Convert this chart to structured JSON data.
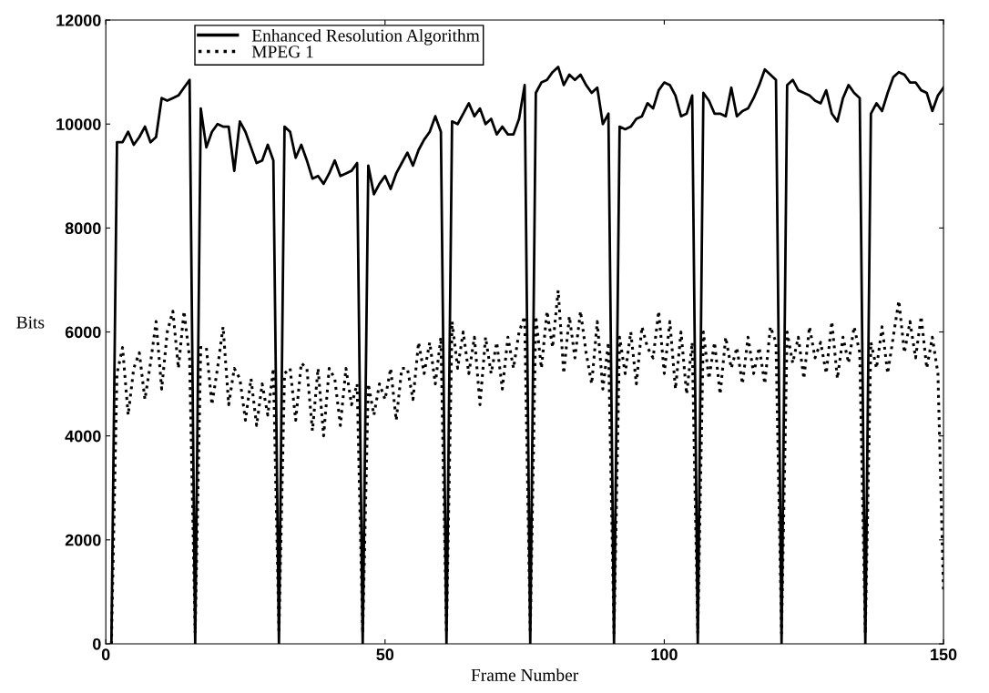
{
  "chart_data": {
    "type": "line",
    "xlabel": "Frame Number",
    "ylabel": "Bits",
    "xlim": [
      0,
      150
    ],
    "ylim": [
      0,
      12000
    ],
    "xticks": [
      0,
      50,
      100,
      150
    ],
    "yticks": [
      0,
      2000,
      4000,
      6000,
      8000,
      10000,
      12000
    ],
    "grid": false,
    "legend": "top left",
    "marker": "none",
    "x": [
      1,
      2,
      3,
      4,
      5,
      6,
      7,
      8,
      9,
      10,
      11,
      12,
      13,
      14,
      15,
      16,
      17,
      18,
      19,
      20,
      21,
      22,
      23,
      24,
      25,
      26,
      27,
      28,
      29,
      30,
      31,
      32,
      33,
      34,
      35,
      36,
      37,
      38,
      39,
      40,
      41,
      42,
      43,
      44,
      45,
      46,
      47,
      48,
      49,
      50,
      51,
      52,
      53,
      54,
      55,
      56,
      57,
      58,
      59,
      60,
      61,
      62,
      63,
      64,
      65,
      66,
      67,
      68,
      69,
      70,
      71,
      72,
      73,
      74,
      75,
      76,
      77,
      78,
      79,
      80,
      81,
      82,
      83,
      84,
      85,
      86,
      87,
      88,
      89,
      90,
      91,
      92,
      93,
      94,
      95,
      96,
      97,
      98,
      99,
      100,
      101,
      102,
      103,
      104,
      105,
      106,
      107,
      108,
      109,
      110,
      111,
      112,
      113,
      114,
      115,
      116,
      117,
      118,
      119,
      120,
      121,
      122,
      123,
      124,
      125,
      126,
      127,
      128,
      129,
      130,
      131,
      132,
      133,
      134,
      135,
      136,
      137,
      138,
      139,
      140,
      141,
      142,
      143,
      144,
      145,
      146,
      147,
      148,
      149,
      150
    ],
    "series": [
      {
        "name": "Enhanced Resolution Algorithm",
        "color": "#000000",
        "line_style": "solid",
        "values": [
          0,
          9650,
          9650,
          9850,
          9600,
          9750,
          9950,
          9650,
          9750,
          10500,
          10450,
          10500,
          10550,
          10700,
          10850,
          0,
          10300,
          9550,
          9850,
          10000,
          9950,
          9950,
          9100,
          10050,
          9850,
          9550,
          9250,
          9300,
          9600,
          9300,
          0,
          9950,
          9850,
          9350,
          9600,
          9300,
          8950,
          9000,
          8850,
          9050,
          9300,
          9000,
          9050,
          9100,
          9250,
          0,
          9200,
          8650,
          8850,
          9000,
          8750,
          9050,
          9250,
          9450,
          9200,
          9500,
          9700,
          9850,
          10150,
          9850,
          0,
          10050,
          10000,
          10200,
          10400,
          10150,
          10300,
          10000,
          10100,
          9800,
          9950,
          9800,
          9800,
          10100,
          10750,
          0,
          10600,
          10800,
          10850,
          11000,
          11100,
          10750,
          10950,
          10850,
          10950,
          10750,
          10600,
          10700,
          10000,
          10200,
          0,
          9950,
          9900,
          9950,
          10100,
          10150,
          10400,
          10300,
          10650,
          10800,
          10750,
          10550,
          10150,
          10200,
          10550,
          0,
          10600,
          10450,
          10200,
          10200,
          10150,
          10700,
          10150,
          10250,
          10300,
          10500,
          10750,
          11050,
          10950,
          10850,
          0,
          10750,
          10850,
          10650,
          10600,
          10550,
          10450,
          10400,
          10650,
          10200,
          10050,
          10500,
          10750,
          10600,
          10500,
          0,
          10200,
          10400,
          10250,
          10600,
          10900,
          11000,
          10950,
          10800,
          10800,
          10650,
          10600,
          10250,
          10550,
          10700
        ]
      },
      {
        "name": "MPEG 1",
        "color": "#000000",
        "line_style": "dotted",
        "values": [
          0,
          5200,
          5700,
          4400,
          5300,
          5600,
          4700,
          5400,
          6200,
          4900,
          6000,
          6400,
          5300,
          6400,
          5500,
          200,
          5700,
          5700,
          4600,
          5300,
          6100,
          4600,
          5300,
          5100,
          4300,
          5100,
          4200,
          5000,
          4400,
          5300,
          200,
          5200,
          5300,
          4300,
          5400,
          5300,
          4100,
          5300,
          4000,
          5300,
          5100,
          4200,
          5300,
          4600,
          5000,
          200,
          5000,
          4400,
          5000,
          4700,
          5300,
          4300,
          5300,
          5300,
          4700,
          5800,
          5200,
          5800,
          5000,
          5900,
          200,
          6200,
          5300,
          6000,
          5200,
          5900,
          4600,
          5900,
          5200,
          5800,
          4900,
          5900,
          5300,
          6000,
          6300,
          200,
          6300,
          5300,
          6400,
          5700,
          6800,
          5200,
          6300,
          5500,
          6400,
          5600,
          5000,
          6200,
          4900,
          5800,
          200,
          5900,
          5200,
          6000,
          5000,
          6100,
          5700,
          5500,
          6400,
          5200,
          6200,
          4900,
          6000,
          4800,
          5800,
          200,
          6000,
          5100,
          5800,
          4800,
          5900,
          5300,
          5700,
          5000,
          5900,
          5200,
          5700,
          5000,
          6100,
          5800,
          200,
          6000,
          5400,
          5900,
          5100,
          6100,
          5500,
          5800,
          5200,
          6200,
          5100,
          5900,
          5400,
          6100,
          5600,
          200,
          5800,
          5300,
          6100,
          5200,
          5900,
          6600,
          5600,
          6200,
          5500,
          6300,
          5300,
          5900,
          5200,
          1000
        ]
      }
    ]
  }
}
